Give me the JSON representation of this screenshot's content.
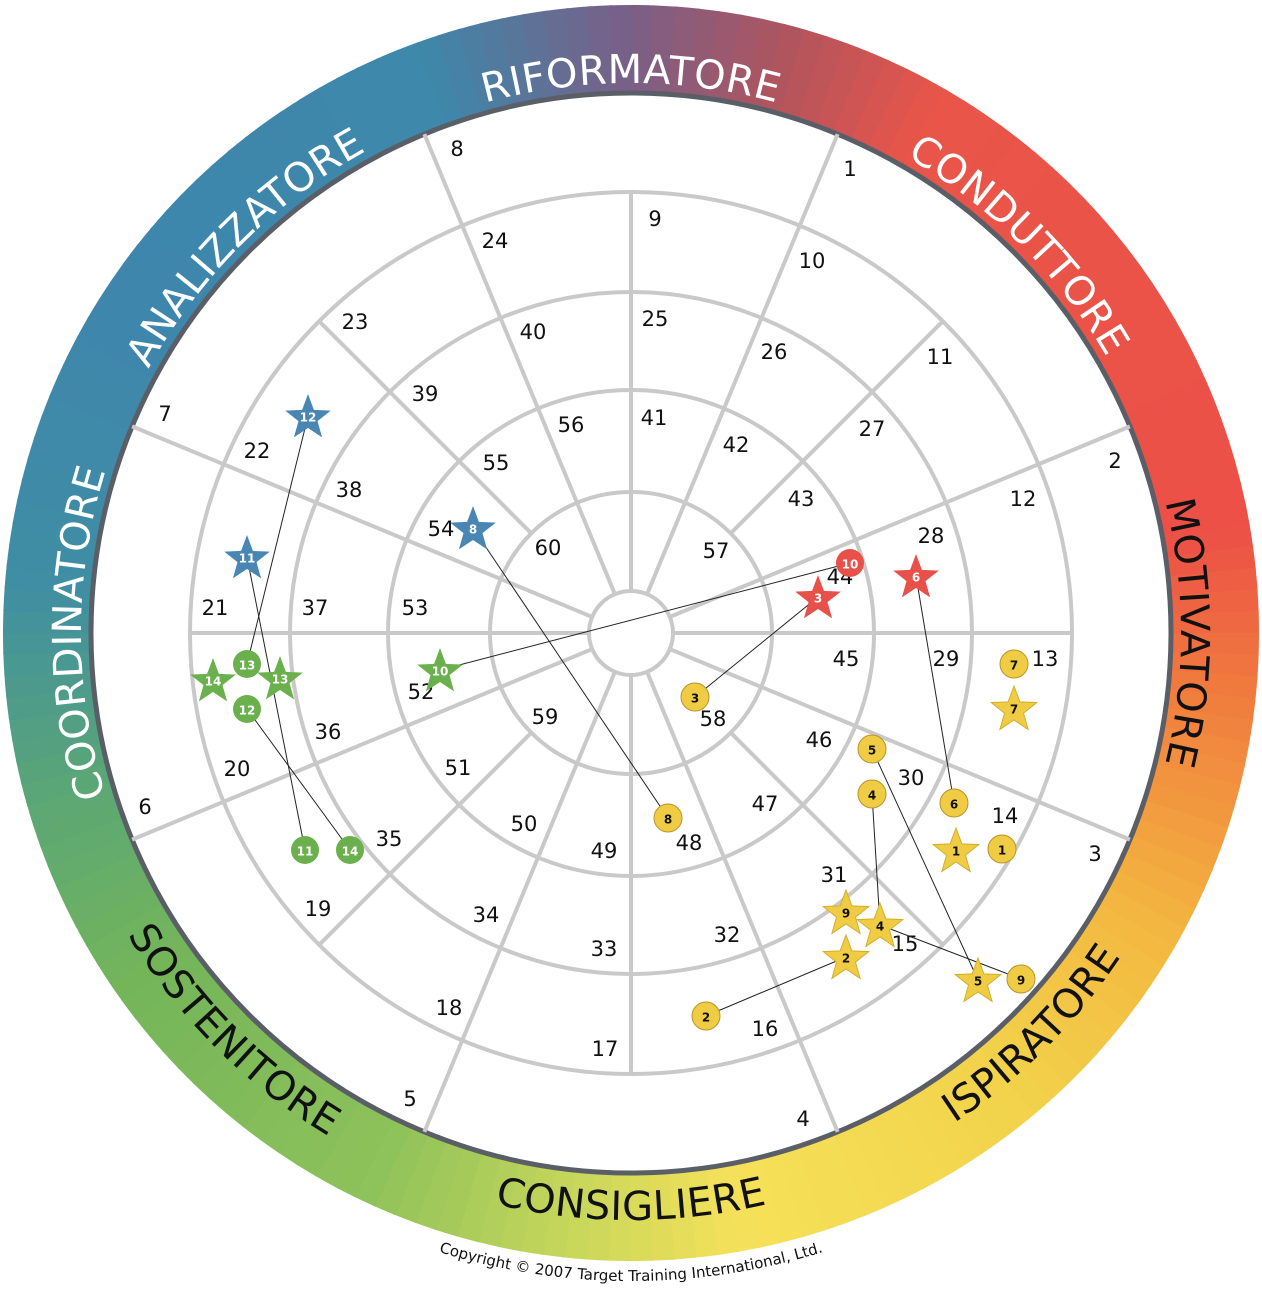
{
  "sectors": [
    "RIFORMATORE",
    "CONDUTTORE",
    "MOTIVATORE",
    "ISPIRATORE",
    "CONSIGLIERE",
    "SOSTENITORE",
    "COORDINATORE",
    "ANALIZZATORE"
  ],
  "cells": [
    1,
    2,
    3,
    4,
    5,
    6,
    7,
    8,
    9,
    10,
    11,
    12,
    13,
    14,
    15,
    16,
    17,
    18,
    19,
    20,
    21,
    22,
    23,
    24,
    25,
    26,
    27,
    28,
    29,
    30,
    31,
    32,
    33,
    34,
    35,
    36,
    37,
    38,
    39,
    40,
    41,
    42,
    43,
    44,
    45,
    46,
    47,
    48,
    49,
    50,
    51,
    52,
    53,
    54,
    55,
    56,
    57,
    58,
    59,
    60
  ],
  "markers": [
    {
      "label": "12",
      "shape": "star",
      "color": "#4a86b4"
    },
    {
      "label": "11",
      "shape": "star",
      "color": "#4a86b4"
    },
    {
      "label": "8",
      "shape": "star",
      "color": "#4a86b4"
    },
    {
      "label": "10",
      "shape": "circle",
      "color": "#e8504a"
    },
    {
      "label": "3",
      "shape": "star",
      "color": "#e8504a"
    },
    {
      "label": "6",
      "shape": "star",
      "color": "#e8504a"
    },
    {
      "label": "14",
      "shape": "star",
      "color": "#6ab04c"
    },
    {
      "label": "13",
      "shape": "circle",
      "color": "#6ab04c"
    },
    {
      "label": "13",
      "shape": "star",
      "color": "#6ab04c"
    },
    {
      "label": "12",
      "shape": "circle",
      "color": "#6ab04c"
    },
    {
      "label": "10",
      "shape": "star",
      "color": "#6ab04c"
    },
    {
      "label": "11",
      "shape": "circle",
      "color": "#6ab04c"
    },
    {
      "label": "14",
      "shape": "circle",
      "color": "#6ab04c"
    },
    {
      "label": "3",
      "shape": "circle",
      "color": "#f0cc44"
    },
    {
      "label": "8",
      "shape": "circle",
      "color": "#f0cc44"
    },
    {
      "label": "5",
      "shape": "circle",
      "color": "#f0cc44"
    },
    {
      "label": "4",
      "shape": "circle",
      "color": "#f0cc44"
    },
    {
      "label": "6",
      "shape": "circle",
      "color": "#f0cc44"
    },
    {
      "label": "1",
      "shape": "star",
      "color": "#f0cc44"
    },
    {
      "label": "1",
      "shape": "circle",
      "color": "#f0cc44"
    },
    {
      "label": "7",
      "shape": "circle",
      "color": "#f0cc44"
    },
    {
      "label": "7",
      "shape": "star",
      "color": "#f0cc44"
    },
    {
      "label": "9",
      "shape": "star",
      "color": "#f0cc44"
    },
    {
      "label": "4",
      "shape": "star",
      "color": "#f0cc44"
    },
    {
      "label": "2",
      "shape": "star",
      "color": "#f0cc44"
    },
    {
      "label": "5",
      "shape": "star",
      "color": "#f0cc44"
    },
    {
      "label": "9",
      "shape": "circle",
      "color": "#f0cc44"
    },
    {
      "label": "2",
      "shape": "circle",
      "color": "#f0cc44"
    }
  ],
  "copyright": "Copyright © 2007 Target Training International, Ltd."
}
